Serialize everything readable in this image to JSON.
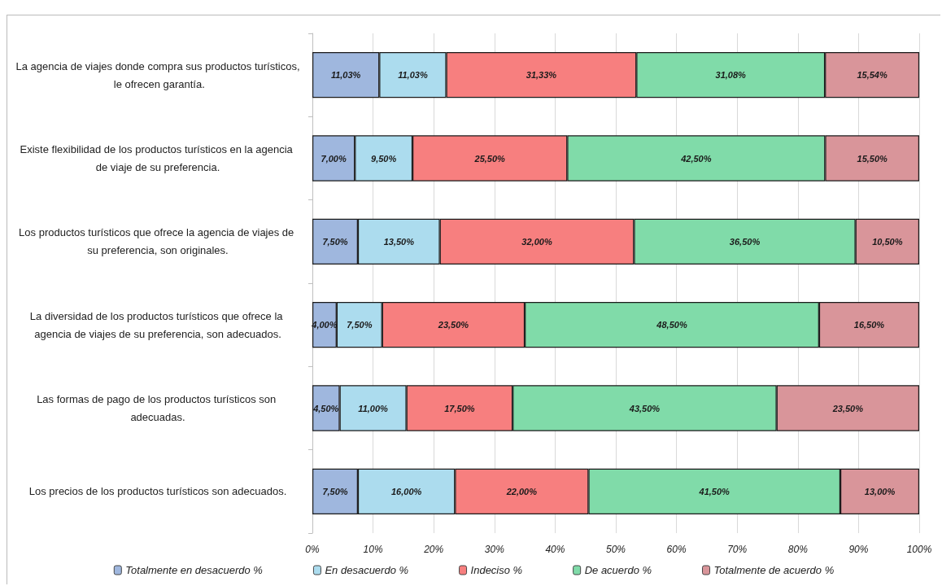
{
  "chart_data": {
    "type": "bar",
    "orientation": "horizontal",
    "stacked": true,
    "categories": [
      "La agencia de viajes donde compra sus productos turísticos, le ofrecen garantía.",
      "Existe flexibilidad de los productos turísticos en la agencia de viaje de su preferencia.",
      "Los productos turísticos que ofrece la agencia de viajes de su preferencia, son originales.",
      "La diversidad de los productos turísticos que ofrece la agencia de viajes de su preferencia, son adecuados.",
      "Las formas de pago de los productos turísticos son adecuadas.",
      "Los precios de los productos turísticos son adecuados."
    ],
    "series": [
      {
        "name": "Totalmente en desacuerdo %",
        "color": "#9fb7de",
        "values": [
          11.03,
          7.0,
          7.5,
          4.0,
          4.5,
          7.5
        ],
        "value_labels": [
          "11,03%",
          "7,00%",
          "7,50%",
          "4,00%",
          "4,50%",
          "7,50%"
        ]
      },
      {
        "name": "En desacuerdo %",
        "color": "#acdcee",
        "values": [
          11.03,
          9.5,
          13.5,
          7.5,
          11.0,
          16.0
        ],
        "value_labels": [
          "11,03%",
          "9,50%",
          "13,50%",
          "7,50%",
          "11,00%",
          "16,00%"
        ]
      },
      {
        "name": "Indeciso %",
        "color": "#f77f7f",
        "values": [
          31.33,
          25.5,
          32.0,
          23.5,
          17.5,
          22.0
        ],
        "value_labels": [
          "31,33%",
          "25,50%",
          "32,00%",
          "23,50%",
          "17,50%",
          "22,00%"
        ]
      },
      {
        "name": "De acuerdo %",
        "color": "#80dba9",
        "values": [
          31.08,
          42.5,
          36.5,
          48.5,
          43.5,
          41.5
        ],
        "value_labels": [
          "31,08%",
          "42,50%",
          "36,50%",
          "48,50%",
          "43,50%",
          "41,50%"
        ]
      },
      {
        "name": "Totalmente de acuerdo %",
        "color": "#d9959a",
        "values": [
          15.54,
          15.5,
          10.5,
          16.5,
          23.5,
          13.0
        ],
        "value_labels": [
          "15,54%",
          "15,50%",
          "10,50%",
          "16,50%",
          "23,50%",
          "13,00%"
        ]
      }
    ],
    "xlim": [
      0,
      100
    ],
    "xticks": [
      {
        "value": 0,
        "label": "0%"
      },
      {
        "value": 10,
        "label": "10%"
      },
      {
        "value": 20,
        "label": "20%"
      },
      {
        "value": 30,
        "label": "30%"
      },
      {
        "value": 40,
        "label": "40%"
      },
      {
        "value": 50,
        "label": "50%"
      },
      {
        "value": 60,
        "label": "60%"
      },
      {
        "value": 70,
        "label": "70%"
      },
      {
        "value": 80,
        "label": "80%"
      },
      {
        "value": 90,
        "label": "90%"
      },
      {
        "value": 100,
        "label": "100%"
      }
    ],
    "grid": "x",
    "legend": "bottom"
  }
}
